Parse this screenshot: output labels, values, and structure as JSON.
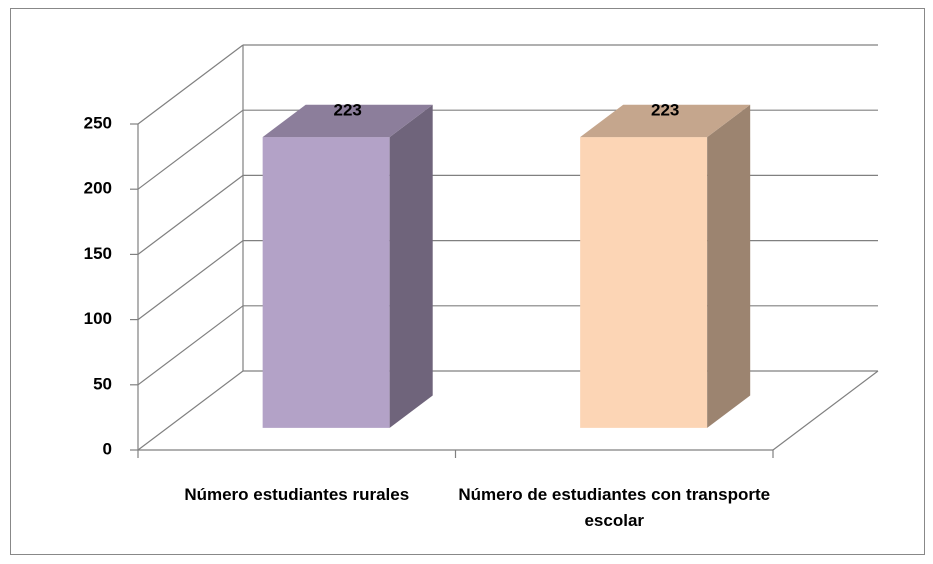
{
  "chart_data": {
    "type": "bar3d",
    "categories": [
      "Número estudiantes rurales",
      "Número de estudiantes con transporte escolar"
    ],
    "values": [
      223,
      223
    ],
    "value_labels": [
      "223",
      "223"
    ],
    "colors": [
      "#b3a2c7",
      "#fcd5b5"
    ],
    "ylim": [
      0,
      250
    ],
    "yticks": [
      0,
      50,
      100,
      150,
      200,
      250
    ],
    "grid": true
  }
}
